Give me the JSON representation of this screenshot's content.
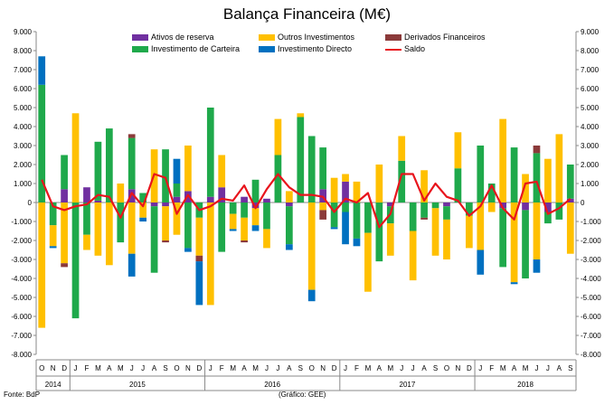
{
  "title": "Balança Financeira (M€)",
  "source": "Fonte: BdP",
  "credit": "(Gráfico: GEE)",
  "chart_data": {
    "type": "bar",
    "stacked": true,
    "ylim": [
      -8000,
      9000
    ],
    "yticks_left": [
      "9.000",
      "8.000",
      "7.000",
      "6.000",
      "5.000",
      "4.000",
      "3.000",
      "2.000",
      "1.000",
      "0",
      "-1.000",
      "-2.000",
      "-3.000",
      "-4.000",
      "-5.000",
      "-6.000",
      "-7.000",
      "-8.000"
    ],
    "yticks_right": [
      "9.000",
      "8.000",
      "7.000",
      "6.000",
      "5.000",
      "4.000",
      "3.000",
      "2.000",
      "1.000",
      "0",
      "-1.000",
      "-2.000",
      "-3.000",
      "-4.000",
      "-5.000",
      "-6.000",
      "-7.000",
      "-8.000"
    ],
    "grid": false,
    "legend_position": "top",
    "months": [
      "O",
      "N",
      "D",
      "J",
      "F",
      "M",
      "A",
      "M",
      "J",
      "J",
      "A",
      "S",
      "O",
      "N",
      "D",
      "J",
      "F",
      "M",
      "A",
      "M",
      "J",
      "J",
      "A",
      "S",
      "O",
      "N",
      "D",
      "J",
      "F",
      "M",
      "A",
      "M",
      "J",
      "J",
      "A",
      "S",
      "O",
      "N",
      "D",
      "J",
      "F",
      "M",
      "A",
      "M",
      "J",
      "J",
      "A",
      "S"
    ],
    "years": [
      {
        "label": "2014",
        "start": 0,
        "end": 2
      },
      {
        "label": "2015",
        "start": 3,
        "end": 14
      },
      {
        "label": "2016",
        "start": 15,
        "end": 26
      },
      {
        "label": "2017",
        "start": 27,
        "end": 38
      },
      {
        "label": "2018",
        "start": 39,
        "end": 47
      }
    ],
    "series": [
      {
        "name": "Ativos de reserva",
        "color": "#7030A0",
        "values": [
          0,
          0,
          700,
          0,
          800,
          100,
          0,
          0,
          700,
          0,
          -200,
          -200,
          300,
          600,
          0,
          300,
          800,
          0,
          300,
          -300,
          200,
          0,
          -200,
          0,
          0,
          700,
          0,
          1100,
          0,
          0,
          0,
          -200,
          0,
          0,
          0,
          0,
          -200,
          0,
          0,
          0,
          0,
          -300,
          0,
          -400,
          0,
          -500,
          0,
          200
        ]
      },
      {
        "name": "Investimento de Carteira",
        "color": "#1FA94B",
        "values": [
          6200,
          -1200,
          1800,
          -6100,
          -1700,
          3100,
          3900,
          -2100,
          2700,
          500,
          -3500,
          2800,
          700,
          -2400,
          -800,
          4700,
          -2600,
          -600,
          -800,
          1200,
          -1400,
          2500,
          -2000,
          4500,
          3500,
          2200,
          -1300,
          -500,
          -1900,
          -1600,
          -3100,
          -900,
          2200,
          -1500,
          -800,
          -300,
          -700,
          1800,
          -700,
          3000,
          1000,
          -3100,
          2900,
          -3600,
          2600,
          -600,
          -900,
          1800
        ]
      },
      {
        "name": "Outros Investimentos",
        "color": "#FFC000",
        "values": [
          -6600,
          -1100,
          -3200,
          4700,
          -800,
          -2800,
          -3300,
          1000,
          -2700,
          -800,
          2800,
          -1800,
          -1700,
          2400,
          -2000,
          -5400,
          1700,
          -800,
          -1200,
          -900,
          -1000,
          1900,
          600,
          200,
          -4600,
          -400,
          1300,
          400,
          1100,
          -3100,
          2000,
          -1700,
          1300,
          -2600,
          1700,
          -2500,
          -2100,
          1900,
          -1700,
          -2500,
          -500,
          4400,
          -4200,
          1500,
          -3000,
          2300,
          3600,
          -2700
        ]
      },
      {
        "name": "Derivados Financeiros",
        "color": "#8B3A3A",
        "values": [
          0,
          0,
          -200,
          0,
          0,
          0,
          0,
          0,
          200,
          0,
          0,
          -100,
          0,
          0,
          -300,
          0,
          0,
          0,
          -100,
          0,
          0,
          0,
          0,
          0,
          0,
          -500,
          0,
          0,
          0,
          0,
          0,
          0,
          0,
          0,
          -100,
          0,
          0,
          0,
          0,
          0,
          0,
          0,
          0,
          0,
          400,
          0,
          0,
          0
        ]
      },
      {
        "name": "Investimento Directo",
        "color": "#0070C0",
        "values": [
          1500,
          -100,
          0,
          0,
          0,
          0,
          0,
          0,
          -1200,
          -200,
          0,
          0,
          1300,
          -200,
          -2300,
          0,
          0,
          -100,
          0,
          -300,
          0,
          0,
          -300,
          0,
          -600,
          0,
          -100,
          -1700,
          -400,
          0,
          0,
          0,
          0,
          0,
          0,
          0,
          0,
          0,
          0,
          -1300,
          0,
          0,
          -100,
          0,
          -700,
          0,
          0,
          0
        ]
      }
    ],
    "saldo": {
      "name": "Saldo",
      "color": "#E8141C",
      "values": [
        1200,
        -200,
        -400,
        -200,
        -100,
        400,
        300,
        -800,
        500,
        -200,
        1500,
        1300,
        -600,
        400,
        -400,
        -200,
        200,
        100,
        900,
        -300,
        700,
        1500,
        800,
        400,
        400,
        300,
        -500,
        200,
        0,
        500,
        -1300,
        -600,
        1500,
        1500,
        100,
        1000,
        300,
        100,
        -700,
        -200,
        900,
        -300,
        -900,
        1000,
        1100,
        -600,
        -300,
        200
      ]
    }
  }
}
